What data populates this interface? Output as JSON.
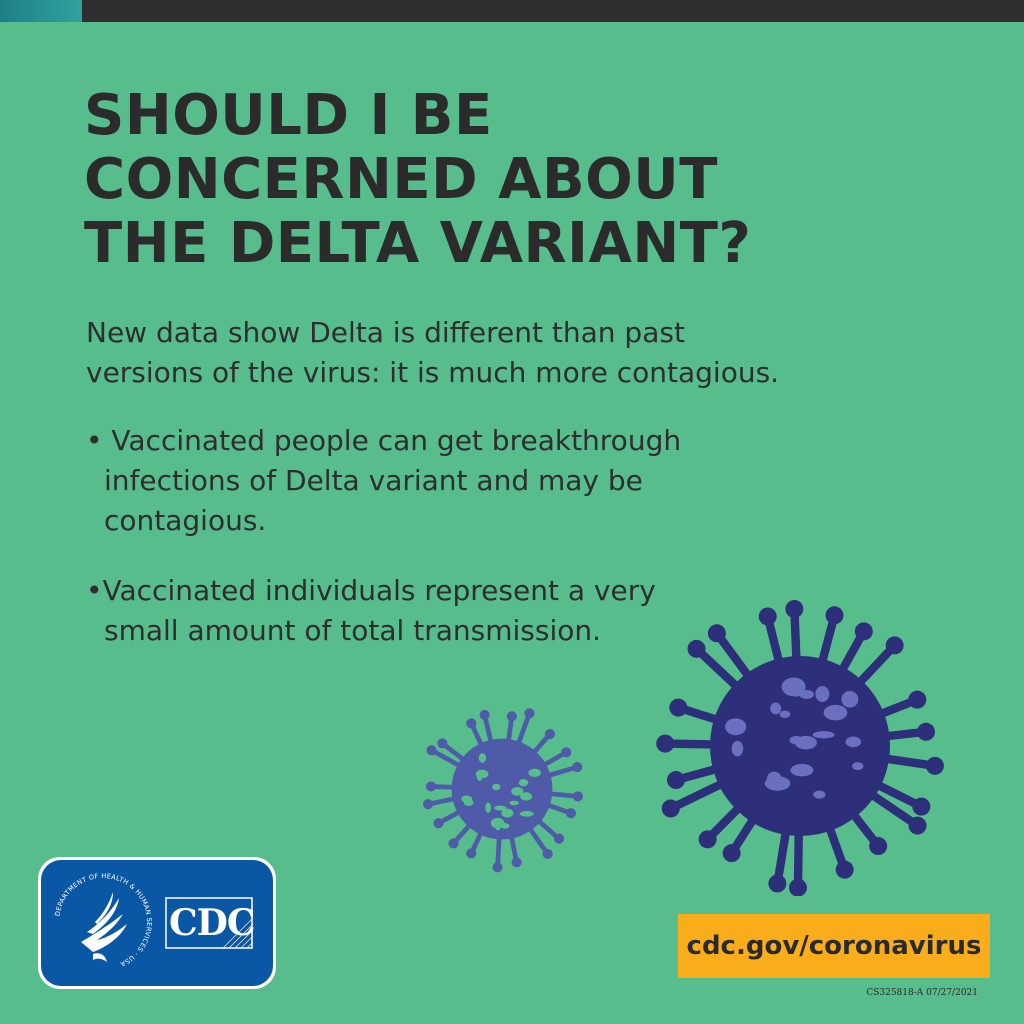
{
  "headline": {
    "lines": [
      "SHOULD I BE",
      "CONCERNED ABOUT",
      "THE DELTA VARIANT?"
    ]
  },
  "intro": {
    "lines": [
      "New data show Delta is different than past",
      "versions of the virus: it is much more contagious."
    ]
  },
  "bullets": [
    {
      "lines": [
        "• Vaccinated people can get breakthrough",
        "infections of Delta variant and may be",
        "contagious."
      ]
    },
    {
      "lines": [
        "•Vaccinated individuals represent a very",
        "small amount of total transmission."
      ]
    }
  ],
  "logos": {
    "hhs_seal_text": "DEPARTMENT OF HEALTH & HUMAN SERVICES · USA",
    "cdc_label": "CDC",
    "hhs_icon": "hhs-eagle-icon",
    "cdc_icon": "cdc-logo-icon"
  },
  "footer": {
    "url": "cdc.gov/coronavirus",
    "code": "CS325818-A 07/27/2021"
  },
  "colors": {
    "background": "#57bd8c",
    "topbar": "#2e2e2e",
    "text": "#2b2b2b",
    "virus_small": "#4f5aa8",
    "virus_large": "#2e2f7a",
    "url_box": "#f9ad1a",
    "logo_blue": "#0a58a5"
  }
}
